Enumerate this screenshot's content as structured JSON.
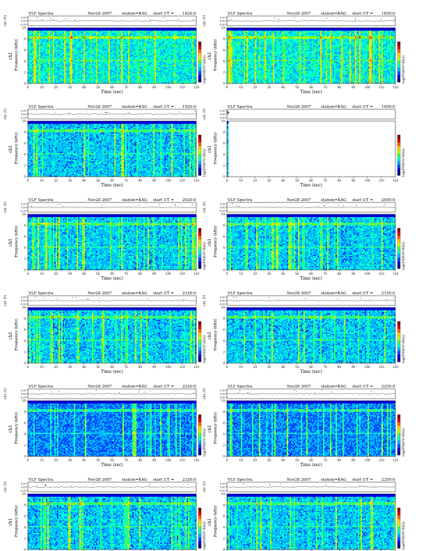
{
  "colors": {
    "spectrogram_scale": [
      "#00007a",
      "#0000d8",
      "#0050ff",
      "#00b4ff",
      "#00ffd0",
      "#3cff5a",
      "#c8ff00",
      "#ffd200",
      "#ff6a00",
      "#e00000",
      "#8a0000"
    ],
    "amplitude_trace": "#000000",
    "axis": "#000000"
  },
  "labels": {
    "header_title": "VLF Spectra",
    "header_date": "Nov28 2007",
    "header_station": "station=KAG",
    "header_start_prefix": "start  UT  =",
    "amp_ylabel": "ch1 (V)",
    "freq_ylabel_top": "ch1",
    "freq_ylabel": "Frequency (kHz)",
    "xlabel": "Time (sec)",
    "colorbar_label": "log(PSD(V²/Hz))"
  },
  "chart_data": [
    {
      "type": "heatmap",
      "start_ut": "1820:0",
      "column": 0,
      "row": 0,
      "record_end_sec": 120,
      "intensity": "high",
      "x": {
        "min": 0,
        "max": 120,
        "ticks": [
          0,
          10,
          20,
          30,
          40,
          50,
          60,
          70,
          80,
          90,
          100,
          110,
          120
        ]
      },
      "y": {
        "min": 0,
        "max": 10,
        "ticks": [
          0,
          2,
          4,
          6,
          8,
          10
        ]
      },
      "amp_ticks": [
        "0.30",
        "0.00",
        "-0.30"
      ]
    },
    {
      "type": "heatmap",
      "start_ut": "1850:0",
      "column": 1,
      "row": 0,
      "record_end_sec": 120,
      "intensity": "high",
      "x": {
        "min": 0,
        "max": 120,
        "ticks": [
          0,
          10,
          20,
          30,
          40,
          50,
          60,
          70,
          80,
          90,
          100,
          110,
          120
        ]
      },
      "y": {
        "min": 0,
        "max": 10,
        "ticks": [
          0,
          2,
          4,
          6,
          8,
          10
        ]
      },
      "amp_ticks": [
        "0.30",
        "0.00",
        "-0.30"
      ]
    },
    {
      "type": "heatmap",
      "start_ut": "1920:0",
      "column": 0,
      "row": 1,
      "record_end_sec": 120,
      "intensity": "medium",
      "x": {
        "min": 0,
        "max": 120,
        "ticks": [
          0,
          10,
          20,
          30,
          40,
          50,
          60,
          70,
          80,
          90,
          100,
          110,
          120
        ]
      },
      "y": {
        "min": 0,
        "max": 10,
        "ticks": [
          0,
          2,
          4,
          6,
          8,
          10
        ]
      },
      "amp_ticks": [
        "0.30",
        "0.00",
        "-0.30"
      ]
    },
    {
      "type": "heatmap",
      "start_ut": "1950:0",
      "column": 1,
      "row": 1,
      "record_end_sec": 1.5,
      "intensity": "medium",
      "x": {
        "min": 0,
        "max": 120,
        "ticks": [
          0,
          10,
          20,
          30,
          40,
          50,
          60,
          70,
          80,
          90,
          100,
          110,
          120
        ]
      },
      "y": {
        "min": 0,
        "max": 10,
        "ticks": [
          0,
          2,
          4,
          6,
          8,
          10
        ]
      },
      "amp_ticks": [
        "0.30",
        "0.00",
        "-0.30"
      ]
    },
    {
      "type": "heatmap",
      "start_ut": "2020:0",
      "column": 0,
      "row": 2,
      "record_end_sec": 120,
      "intensity": "medium",
      "x": {
        "min": 0,
        "max": 120,
        "ticks": [
          0,
          10,
          20,
          30,
          40,
          50,
          60,
          70,
          80,
          90,
          100,
          110,
          120
        ]
      },
      "y": {
        "min": 0,
        "max": 10,
        "ticks": [
          0,
          2,
          4,
          6,
          8,
          10
        ]
      },
      "amp_ticks": [
        "0.30",
        "0.00",
        "-0.30"
      ]
    },
    {
      "type": "heatmap",
      "start_ut": "2050:0",
      "column": 1,
      "row": 2,
      "record_end_sec": 120,
      "intensity": "medium",
      "x": {
        "min": 0,
        "max": 120,
        "ticks": [
          0,
          10,
          20,
          30,
          40,
          50,
          60,
          70,
          80,
          90,
          100,
          110,
          120
        ]
      },
      "y": {
        "min": 0,
        "max": 10,
        "ticks": [
          0,
          2,
          4,
          6,
          8,
          10
        ]
      },
      "amp_ticks": [
        "0.30",
        "0.00",
        "-0.30"
      ]
    },
    {
      "type": "heatmap",
      "start_ut": "2120:0",
      "column": 0,
      "row": 3,
      "record_end_sec": 120,
      "intensity": "medium",
      "x": {
        "min": 0,
        "max": 120,
        "ticks": [
          0,
          10,
          20,
          30,
          40,
          50,
          60,
          70,
          80,
          90,
          100,
          110,
          120
        ]
      },
      "y": {
        "min": 0,
        "max": 10,
        "ticks": [
          0,
          2,
          4,
          6,
          8,
          10
        ]
      },
      "amp_ticks": [
        "0.30",
        "0.00",
        "-0.30"
      ]
    },
    {
      "type": "heatmap",
      "start_ut": "2150:0",
      "column": 1,
      "row": 3,
      "record_end_sec": 120,
      "intensity": "medium",
      "x": {
        "min": 0,
        "max": 120,
        "ticks": [
          0,
          10,
          20,
          30,
          40,
          50,
          60,
          70,
          80,
          90,
          100,
          110,
          120
        ]
      },
      "y": {
        "min": 0,
        "max": 10,
        "ticks": [
          0,
          2,
          4,
          6,
          8,
          10
        ]
      },
      "amp_ticks": [
        "0.30",
        "0.00",
        "-0.30"
      ]
    },
    {
      "type": "heatmap",
      "start_ut": "2220:0",
      "column": 0,
      "row": 4,
      "record_end_sec": 120,
      "intensity": "low",
      "x": {
        "min": 0,
        "max": 120,
        "ticks": [
          0,
          10,
          20,
          30,
          40,
          50,
          60,
          70,
          80,
          90,
          100,
          110,
          120
        ]
      },
      "y": {
        "min": 0,
        "max": 10,
        "ticks": [
          0,
          2,
          4,
          6,
          8,
          10
        ]
      },
      "amp_ticks": [
        "0.30",
        "0.00",
        "-0.30"
      ]
    },
    {
      "type": "heatmap",
      "start_ut": "2250:0",
      "column": 1,
      "row": 4,
      "record_end_sec": 120,
      "intensity": "low",
      "x": {
        "min": 0,
        "max": 120,
        "ticks": [
          0,
          10,
          20,
          30,
          40,
          50,
          60,
          70,
          80,
          90,
          100,
          110,
          120
        ]
      },
      "y": {
        "min": 0,
        "max": 10,
        "ticks": [
          0,
          2,
          4,
          6,
          8,
          10
        ]
      },
      "amp_ticks": [
        "0.30",
        "0.00",
        "-0.30"
      ]
    },
    {
      "type": "heatmap",
      "start_ut": "2320:0",
      "column": 0,
      "row": 5,
      "record_end_sec": 120,
      "intensity": "medium",
      "x": {
        "min": 0,
        "max": 120,
        "ticks": [
          0,
          10,
          20,
          30,
          40,
          50,
          60,
          70,
          80,
          90,
          100,
          110,
          120
        ]
      },
      "y": {
        "min": 0,
        "max": 10,
        "ticks": [
          0,
          2,
          4,
          6,
          8,
          10
        ]
      },
      "amp_ticks": [
        "0.30",
        "0.00",
        "-0.30"
      ]
    },
    {
      "type": "heatmap",
      "start_ut": "2350:0",
      "column": 1,
      "row": 5,
      "record_end_sec": 120,
      "intensity": "medium",
      "x": {
        "min": 0,
        "max": 120,
        "ticks": [
          0,
          10,
          20,
          30,
          40,
          50,
          60,
          70,
          80,
          90,
          100,
          110,
          120
        ]
      },
      "y": {
        "min": 0,
        "max": 10,
        "ticks": [
          0,
          2,
          4,
          6,
          8,
          10
        ]
      },
      "amp_ticks": [
        "0.30",
        "0.00",
        "-0.30"
      ]
    }
  ]
}
